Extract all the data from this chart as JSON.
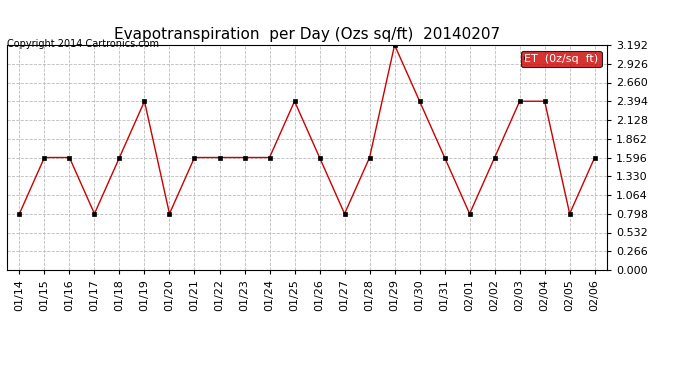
{
  "title": "Evapotranspiration  per Day (Ozs sq/ft)  20140207",
  "copyright": "Copyright 2014 Cartronics.com",
  "legend_label": "ET  (0z/sq  ft)",
  "dates": [
    "01/14",
    "01/15",
    "01/16",
    "01/17",
    "01/18",
    "01/19",
    "01/20",
    "01/21",
    "01/22",
    "01/23",
    "01/24",
    "01/25",
    "01/26",
    "01/27",
    "01/28",
    "01/29",
    "01/30",
    "01/31",
    "02/01",
    "02/02",
    "02/03",
    "02/04",
    "02/05",
    "02/06"
  ],
  "values": [
    0.798,
    1.596,
    1.596,
    0.798,
    1.596,
    2.394,
    0.798,
    1.596,
    1.596,
    1.596,
    1.596,
    2.394,
    1.596,
    0.798,
    1.596,
    3.192,
    2.394,
    1.596,
    0.798,
    1.596,
    2.394,
    2.394,
    0.798,
    1.596
  ],
  "y_ticks": [
    0.0,
    0.266,
    0.532,
    0.798,
    1.064,
    1.33,
    1.596,
    1.862,
    2.128,
    2.394,
    2.66,
    2.926,
    3.192
  ],
  "ylim": [
    0.0,
    3.192
  ],
  "line_color": "#cc0000",
  "marker_color": "#000000",
  "legend_bg": "#cc0000",
  "legend_text_color": "#ffffff",
  "background_color": "#ffffff",
  "grid_color": "#bbbbbb",
  "title_fontsize": 11,
  "copyright_fontsize": 7,
  "tick_fontsize": 8,
  "legend_fontsize": 8
}
